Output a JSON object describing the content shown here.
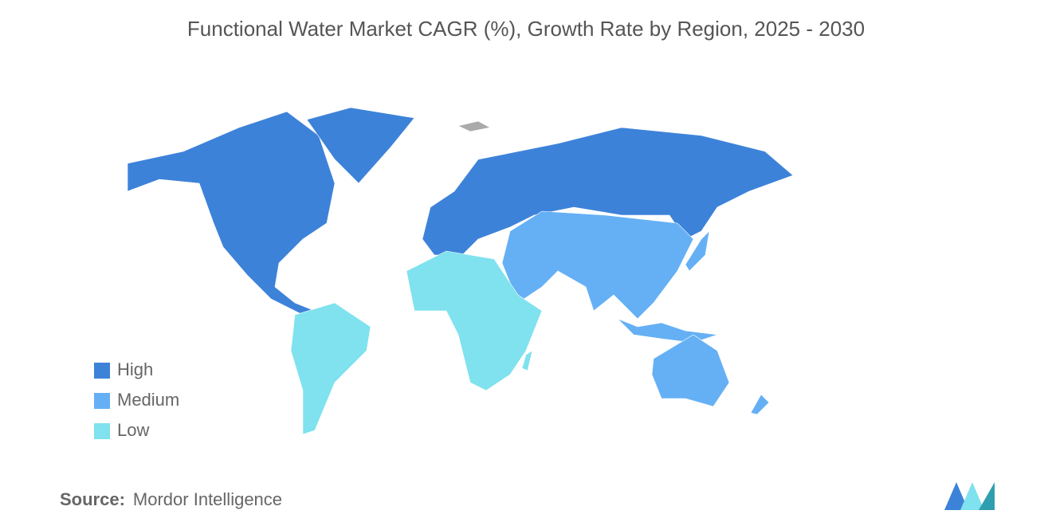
{
  "title": "Functional Water Market CAGR (%), Growth Rate by Region, 2025 - 2030",
  "legend": {
    "items": [
      {
        "label": "High",
        "color": "#3d82d9"
      },
      {
        "label": "Medium",
        "color": "#65b0f5"
      },
      {
        "label": "Low",
        "color": "#7fe2ee"
      }
    ]
  },
  "source": {
    "label": "Source:",
    "text": "Mordor Intelligence"
  }
}
